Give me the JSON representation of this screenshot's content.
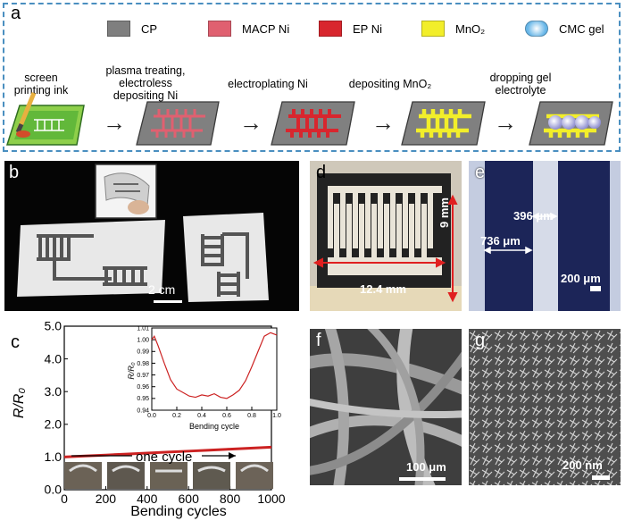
{
  "panel_a": {
    "label": "a",
    "legend": [
      {
        "name": "CP",
        "color": "#7f7f7f"
      },
      {
        "name": "MACP Ni",
        "color": "#e06070"
      },
      {
        "name": "EP Ni",
        "color": "#d8262e"
      },
      {
        "name": "MnO₂",
        "color": "#f2ee2a"
      },
      {
        "name": "CMC gel",
        "color": "#67b6e8"
      }
    ],
    "steps": [
      "screen\nprinting ink",
      "plasma treating,\nelectroless\ndepositing Ni",
      "electroplating  Ni",
      "depositing MnO₂",
      "dropping gel\nelectrolyte"
    ]
  },
  "panel_b": {
    "label": "b",
    "scale_bar": "2 cm"
  },
  "panel_c": {
    "label": "c",
    "ylabel": "R/R₀",
    "xlabel": "Bending cycles",
    "annotation": "one cycle",
    "inset_ylabel": "R/R₀",
    "inset_xlabel": "Bending cycle"
  },
  "panel_d": {
    "label": "d",
    "height_label": "9 mm",
    "width_label": "12.4 mm"
  },
  "panel_e": {
    "label": "e",
    "dim1": "396 μm",
    "dim2": "736 μm",
    "scale_bar": "200 μm"
  },
  "panel_f": {
    "label": "f",
    "scale_bar": "100 μm"
  },
  "panel_g": {
    "label": "g",
    "scale_bar": "200 nm"
  },
  "chart_data": [
    {
      "type": "line",
      "xlabel": "Bending cycles",
      "ylabel": "R/R₀",
      "xlim": [
        0,
        1000
      ],
      "ylim": [
        0.0,
        5.0
      ],
      "x_ticks": [
        0,
        200,
        400,
        600,
        800,
        1000
      ],
      "y_ticks": [
        0.0,
        1.0,
        2.0,
        3.0,
        4.0,
        5.0
      ],
      "x_tick_labels": [
        "0",
        "200",
        "400",
        "600",
        "800",
        "1000"
      ],
      "y_tick_labels": [
        "0.0",
        "1.0",
        "2.0",
        "3.0",
        "4.0",
        "5.0"
      ],
      "series_color": "#cc2222",
      "x": [
        0,
        100,
        200,
        300,
        400,
        500,
        600,
        700,
        800,
        900,
        1000
      ],
      "y": [
        1.0,
        1.03,
        1.06,
        1.09,
        1.12,
        1.15,
        1.18,
        1.21,
        1.24,
        1.27,
        1.3
      ]
    },
    {
      "type": "line",
      "xlabel": "Bending cycle",
      "ylabel": "R/R₀",
      "xlim": [
        0.0,
        1.0
      ],
      "ylim": [
        0.94,
        1.01
      ],
      "x_ticks": [
        0.0,
        0.2,
        0.4,
        0.6,
        0.8,
        1.0
      ],
      "y_ticks": [
        0.94,
        0.95,
        0.96,
        0.97,
        0.98,
        0.99,
        1.0,
        1.01
      ],
      "x_tick_labels": [
        "0.0",
        "0.2",
        "0.4",
        "0.6",
        "0.8",
        "1.0"
      ],
      "y_tick_labels": [
        "0.94",
        "0.95",
        "0.96",
        "0.97",
        "0.98",
        "0.99",
        "1.00",
        "1.01"
      ],
      "series_color": "#cc2222",
      "x": [
        0.0,
        0.02,
        0.05,
        0.1,
        0.15,
        0.2,
        0.25,
        0.3,
        0.35,
        0.4,
        0.45,
        0.5,
        0.55,
        0.6,
        0.65,
        0.7,
        0.75,
        0.8,
        0.85,
        0.9,
        0.95,
        1.0
      ],
      "y": [
        1.0,
        1.003,
        0.995,
        0.98,
        0.966,
        0.958,
        0.955,
        0.952,
        0.951,
        0.953,
        0.952,
        0.954,
        0.951,
        0.95,
        0.953,
        0.957,
        0.965,
        0.977,
        0.99,
        1.003,
        1.006,
        1.004
      ]
    }
  ]
}
